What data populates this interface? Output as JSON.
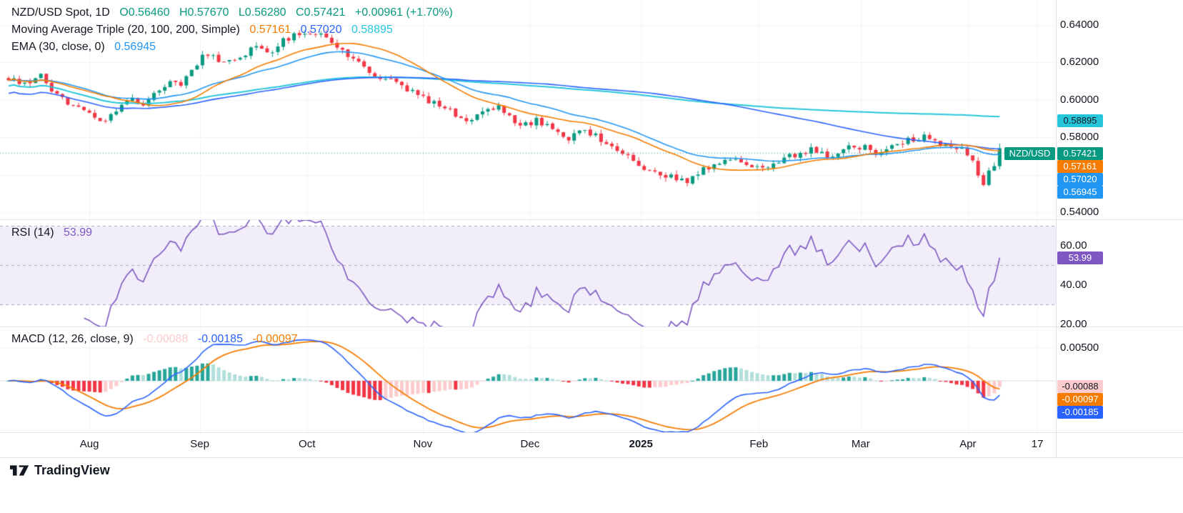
{
  "header": {
    "symbol_title": "NZD/USD Spot, 1D",
    "open": "O0.56460",
    "high": "H0.57670",
    "low": "L0.56280",
    "close": "C0.57421",
    "change": "+0.00961 (+1.70%)",
    "ma_label": "Moving Average Triple (20, 100, 200, Simple)",
    "ma_values": [
      "0.57161",
      "0.57020",
      "0.58895"
    ],
    "ema_label": "EMA (30, close, 0)",
    "ema_value": "0.56945",
    "rsi_label": "RSI (14)",
    "rsi_value": "53.99",
    "macd_label": "MACD (12, 26, close, 9)",
    "macd_values": [
      "-0.00088",
      "-0.00185",
      "-0.00097"
    ]
  },
  "colors": {
    "up": "#089981",
    "down": "#f23645",
    "ma20": "#f57c00",
    "ma100": "#2962ff",
    "ma200": "#26c6da",
    "ema30": "#2196f3",
    "rsi": "#7e57c2",
    "rsi_band": "rgba(126,87,194,0.10)",
    "macd_line": "#2962ff",
    "signal_line": "#f57c00",
    "hist_up": "#26a69a",
    "hist_up_weak": "#b2dfdb",
    "hist_down": "#f23645",
    "hist_down_weak": "#fccbcd",
    "grid": "#f0f3fa",
    "zero_line": "#d6d9e0",
    "dash": "#a5a9b4",
    "axis_border": "#e0e3eb",
    "text": "#131722"
  },
  "price_axis": {
    "ticks": [
      {
        "label": "0.64000",
        "value": 0.64
      },
      {
        "label": "0.62000",
        "value": 0.62
      },
      {
        "label": "0.60000",
        "value": 0.6
      },
      {
        "label": "0.58000",
        "value": 0.58
      },
      {
        "label": "0.54000",
        "value": 0.54
      }
    ],
    "badges": [
      {
        "label": "0.58895",
        "value": 0.58895,
        "bg": "#26c6da",
        "fg": "#131722"
      },
      {
        "label": "0.57421",
        "value": 0.57421,
        "bg": "#089981",
        "fg": "#ffffff",
        "symbol": "NZD/USD"
      },
      {
        "label": "0.57161",
        "value": 0.57161,
        "bg": "#f57c00",
        "fg": "#ffffff"
      },
      {
        "label": "0.57020",
        "value": 0.5702,
        "bg": "#2196f3",
        "fg": "#ffffff"
      },
      {
        "label": "0.56945",
        "value": 0.56945,
        "bg": "#2196f3",
        "fg": "#ffffff"
      }
    ]
  },
  "rsi_axis": {
    "ticks": [
      {
        "label": "60.00",
        "value": 60
      },
      {
        "label": "40.00",
        "value": 40
      },
      {
        "label": "20.00",
        "value": 20
      }
    ],
    "badge": {
      "label": "53.99",
      "value": 53.99,
      "bg": "#7e57c2",
      "fg": "#ffffff"
    }
  },
  "macd_axis": {
    "ticks": [
      {
        "label": "0.00500",
        "value": 0.005
      }
    ],
    "badges": [
      {
        "label": "-0.00088",
        "value": -0.00088,
        "bg": "#fccbcd",
        "fg": "#131722"
      },
      {
        "label": "-0.00097",
        "value": -0.00097,
        "bg": "#f57c00",
        "fg": "#ffffff"
      },
      {
        "label": "-0.00185",
        "value": -0.00185,
        "bg": "#2962ff",
        "fg": "#ffffff"
      }
    ]
  },
  "time_axis": {
    "ticks": [
      {
        "label": "Aug"
      },
      {
        "label": "Sep"
      },
      {
        "label": "Oct"
      },
      {
        "label": "Nov"
      },
      {
        "label": "Dec"
      },
      {
        "label": "2025",
        "bold": true
      },
      {
        "label": "Feb"
      },
      {
        "label": "Mar"
      },
      {
        "label": "Apr"
      },
      {
        "label": "17"
      }
    ]
  },
  "footer": {
    "brand": "TradingView"
  },
  "chart_data": {
    "type": "candlestick",
    "symbol": "NZD/USD",
    "interval": "1D",
    "title": "NZD/USD Spot, 1D",
    "x_labels": [
      "Aug",
      "Sep",
      "Oct",
      "Nov",
      "Dec",
      "2025",
      "Feb",
      "Mar",
      "Apr",
      "17"
    ],
    "bars": 185,
    "price_range_visible": [
      0.536,
      0.653
    ],
    "grid_values": [
      0.64,
      0.62,
      0.6,
      0.58,
      0.56,
      0.54
    ],
    "last_bar": {
      "open": 0.5646,
      "high": 0.5767,
      "low": 0.5628,
      "close": 0.57421,
      "change": "+0.00961 (+1.70%)"
    },
    "close_keyframes": [
      [
        0,
        0.6115
      ],
      [
        3,
        0.6085
      ],
      [
        6,
        0.6125
      ],
      [
        9,
        0.603
      ],
      [
        12,
        0.596
      ],
      [
        15,
        0.5935
      ],
      [
        17,
        0.5875
      ],
      [
        20,
        0.595
      ],
      [
        23,
        0.6
      ],
      [
        25,
        0.5985
      ],
      [
        28,
        0.6055
      ],
      [
        30,
        0.6115
      ],
      [
        32,
        0.609
      ],
      [
        34,
        0.6165
      ],
      [
        36,
        0.6235
      ],
      [
        38,
        0.625
      ],
      [
        40,
        0.619
      ],
      [
        43,
        0.6235
      ],
      [
        46,
        0.6285
      ],
      [
        48,
        0.6245
      ],
      [
        51,
        0.632
      ],
      [
        54,
        0.6355
      ],
      [
        56,
        0.634
      ],
      [
        58,
        0.6345
      ],
      [
        61,
        0.629
      ],
      [
        64,
        0.622
      ],
      [
        67,
        0.6155
      ],
      [
        70,
        0.6105
      ],
      [
        73,
        0.6085
      ],
      [
        76,
        0.6015
      ],
      [
        79,
        0.5985
      ],
      [
        82,
        0.5935
      ],
      [
        85,
        0.589
      ],
      [
        88,
        0.5945
      ],
      [
        91,
        0.5955
      ],
      [
        94,
        0.5885
      ],
      [
        96,
        0.5865
      ],
      [
        98,
        0.5895
      ],
      [
        101,
        0.585
      ],
      [
        104,
        0.58
      ],
      [
        107,
        0.584
      ],
      [
        110,
        0.5785
      ],
      [
        113,
        0.573
      ],
      [
        115,
        0.5705
      ],
      [
        117,
        0.5655
      ],
      [
        120,
        0.561
      ],
      [
        123,
        0.559
      ],
      [
        126,
        0.556
      ],
      [
        129,
        0.5625
      ],
      [
        132,
        0.566
      ],
      [
        135,
        0.568
      ],
      [
        138,
        0.565
      ],
      [
        140,
        0.5635
      ],
      [
        143,
        0.5675
      ],
      [
        146,
        0.571
      ],
      [
        149,
        0.573
      ],
      [
        152,
        0.57
      ],
      [
        155,
        0.574
      ],
      [
        157,
        0.576
      ],
      [
        159,
        0.5745
      ],
      [
        161,
        0.572
      ],
      [
        164,
        0.575
      ],
      [
        167,
        0.579
      ],
      [
        170,
        0.58
      ],
      [
        173,
        0.577
      ],
      [
        176,
        0.5745
      ],
      [
        178,
        0.572
      ],
      [
        179,
        0.566
      ],
      [
        180,
        0.5585
      ],
      [
        181,
        0.553
      ],
      [
        182,
        0.5625
      ],
      [
        183,
        0.5646
      ],
      [
        184,
        0.57421
      ]
    ],
    "overlays": [
      {
        "name": "SMA 20",
        "period": 20,
        "last": 0.57161
      },
      {
        "name": "SMA 100",
        "period": 100,
        "last": 0.5702
      },
      {
        "name": "SMA 200",
        "period": 200,
        "last": 0.58895
      },
      {
        "name": "EMA 30",
        "period": 30,
        "last": 0.56945
      }
    ],
    "rsi": {
      "type": "line",
      "name": "RSI (14)",
      "period": 14,
      "last": 53.99,
      "levels": [
        70,
        50,
        30
      ],
      "axis_ticks": [
        60,
        40,
        20
      ]
    },
    "macd": {
      "type": "macd",
      "fast": 12,
      "slow": 26,
      "signal": 9,
      "last": {
        "histogram": -0.00088,
        "macd": -0.00185,
        "signal": -0.00097
      },
      "axis_ticks": [
        0.005
      ]
    }
  }
}
